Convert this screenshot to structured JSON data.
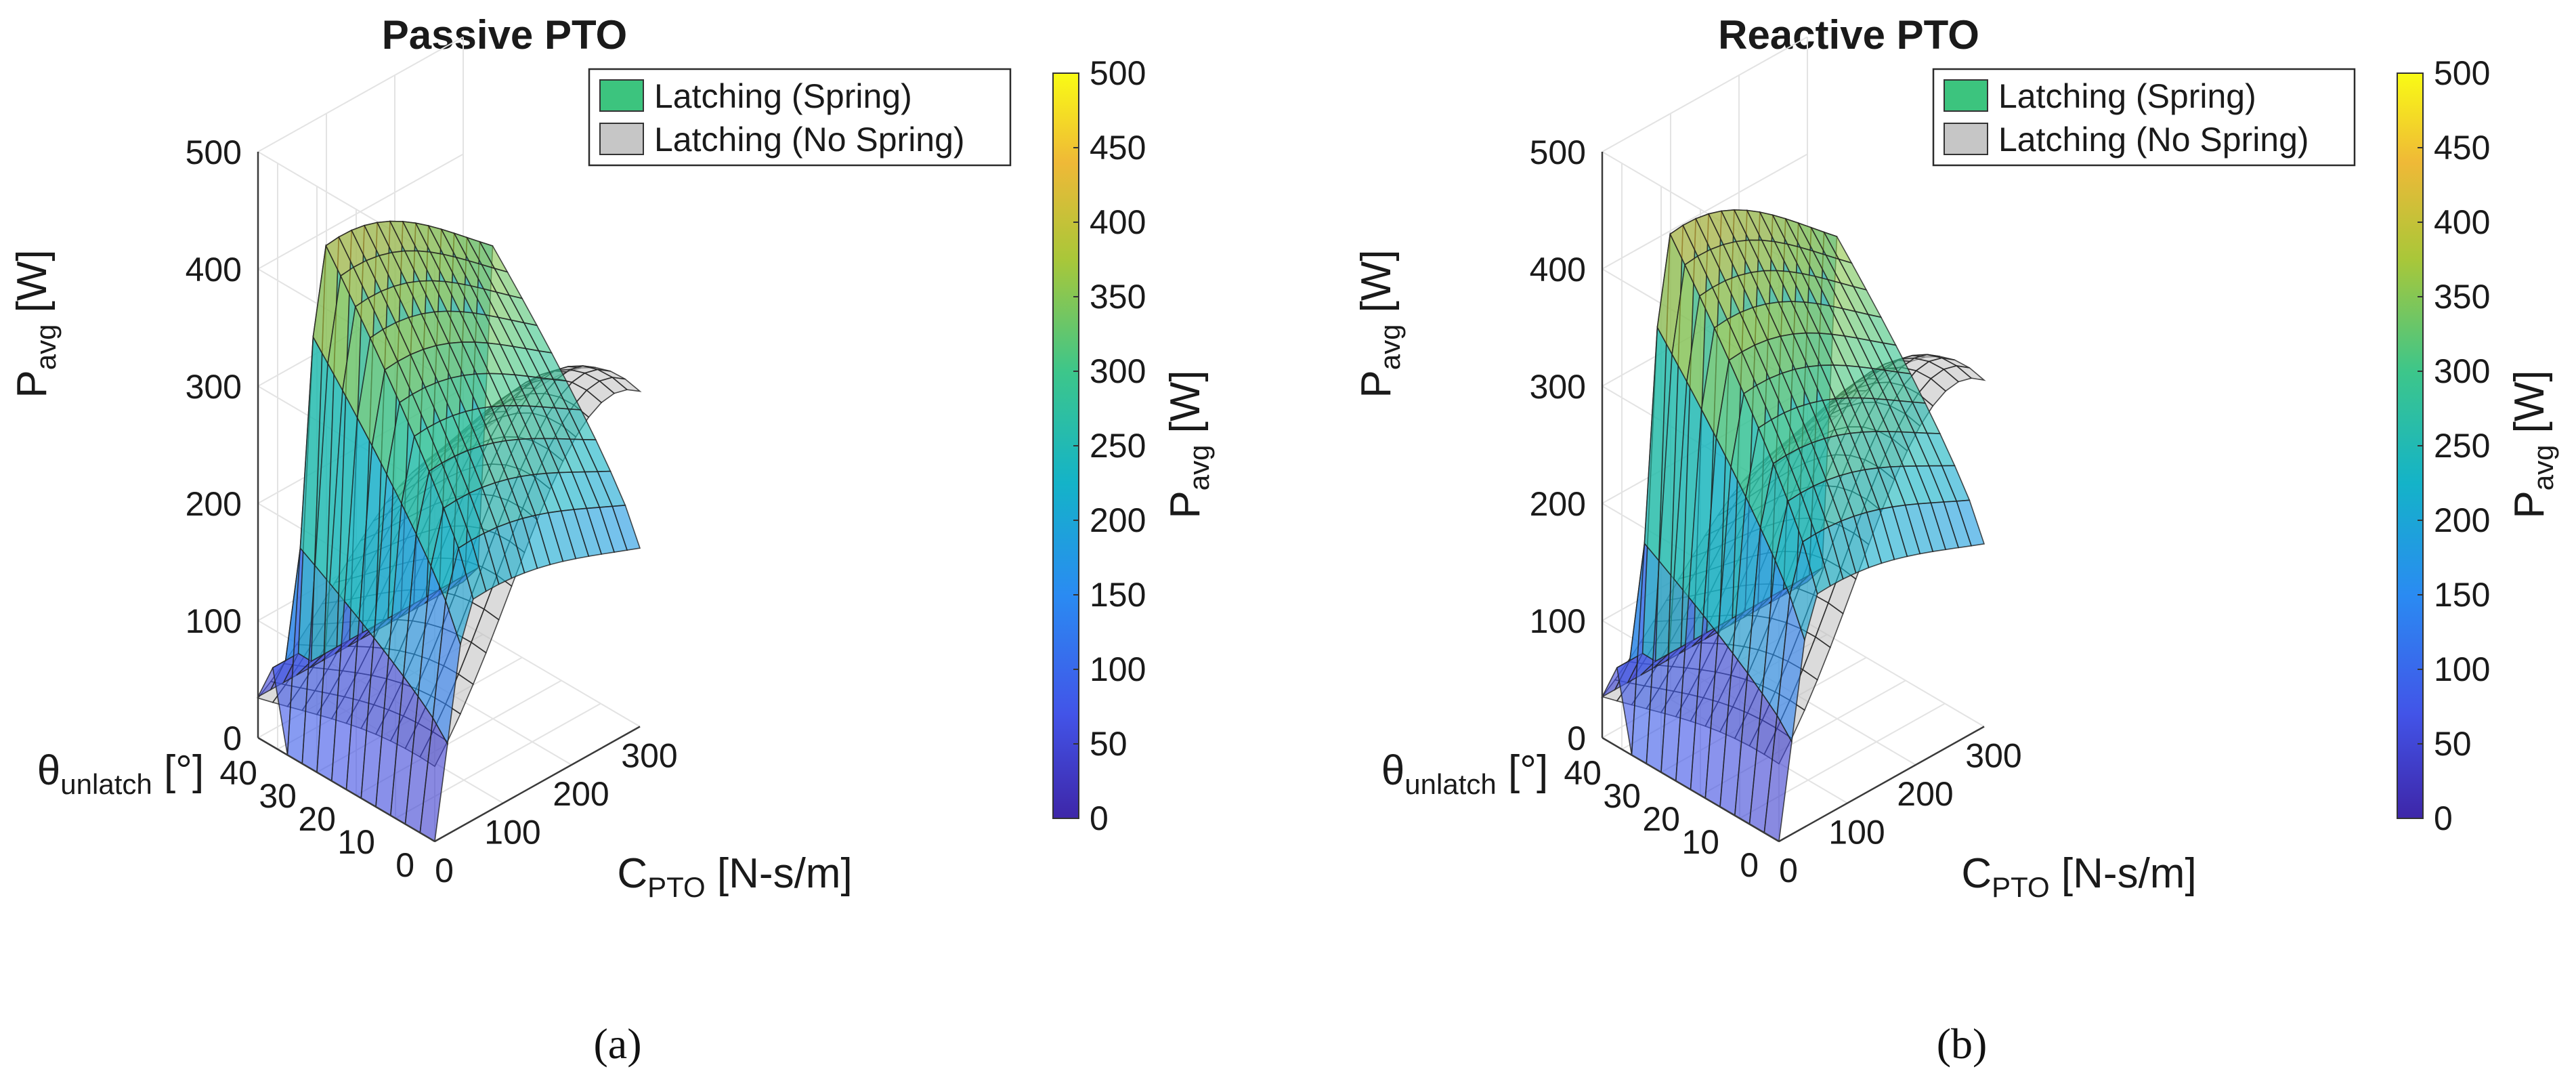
{
  "chart_data": [
    {
      "type": "surface3d",
      "panel": "a",
      "title": "Passive PTO",
      "caption": "(a)",
      "xlabel": {
        "main": "C",
        "sub": "PTO",
        "unit": " [N-s/m]"
      },
      "ylabel": {
        "main": "θ",
        "sub": "unlatch",
        "unit": " [°]"
      },
      "zlabel": {
        "main": "P",
        "sub": "avg",
        "unit": " [W]"
      },
      "xlim": [
        0,
        300
      ],
      "ylim": [
        0,
        45
      ],
      "zlim": [
        0,
        500
      ],
      "x_ticks": [
        "0",
        "100",
        "200",
        "300"
      ],
      "y_ticks": [
        "0",
        "10",
        "20",
        "30",
        "40"
      ],
      "z_ticks": [
        "0",
        "100",
        "200",
        "300",
        "400",
        "500"
      ],
      "legend": [
        "Latching (Spring)",
        "Latching (No Spring)"
      ],
      "legend_placement": "top-right",
      "colorbar": {
        "label": {
          "main": "P",
          "sub": "avg",
          "unit": " [W]"
        },
        "ticks": [
          "0",
          "50",
          "100",
          "150",
          "200",
          "250",
          "300",
          "350",
          "400",
          "450",
          "500"
        ],
        "range": [
          0,
          500
        ]
      },
      "series": [
        {
          "name": "Latching (Spring)",
          "peak_power_W": 420,
          "peak_C_PTO": 80,
          "peak_theta_deg": 32,
          "power_at_C300_W": 320,
          "power_at_theta0_W": 130
        },
        {
          "name": "Latching (No Spring)",
          "peak_power_W": 300,
          "peak_C_PTO": 140,
          "peak_theta_deg": 10,
          "power_at_C300_W": 290,
          "power_at_theta0_W": 60
        }
      ]
    },
    {
      "type": "surface3d",
      "panel": "b",
      "title": "Reactive PTO",
      "caption": "(b)",
      "xlabel": {
        "main": "C",
        "sub": "PTO",
        "unit": " [N-s/m]"
      },
      "ylabel": {
        "main": "θ",
        "sub": "unlatch",
        "unit": " [°]"
      },
      "zlabel": {
        "main": "P",
        "sub": "avg",
        "unit": " [W]"
      },
      "xlim": [
        0,
        300
      ],
      "ylim": [
        0,
        45
      ],
      "zlim": [
        0,
        500
      ],
      "x_ticks": [
        "0",
        "100",
        "200",
        "300"
      ],
      "y_ticks": [
        "0",
        "10",
        "20",
        "30",
        "40"
      ],
      "z_ticks": [
        "0",
        "100",
        "200",
        "300",
        "400",
        "500"
      ],
      "legend": [
        "Latching (Spring)",
        "Latching (No Spring)"
      ],
      "legend_placement": "top-right",
      "colorbar": {
        "label": {
          "main": "P",
          "sub": "avg",
          "unit": " [W]"
        },
        "ticks": [
          "0",
          "50",
          "100",
          "150",
          "200",
          "250",
          "300",
          "350",
          "400",
          "450",
          "500"
        ],
        "range": [
          0,
          500
        ]
      },
      "series": [
        {
          "name": "Latching (Spring)",
          "peak_power_W": 430,
          "peak_C_PTO": 80,
          "peak_theta_deg": 32,
          "power_at_C300_W": 320,
          "power_at_theta0_W": 140
        },
        {
          "name": "Latching (No Spring)",
          "peak_power_W": 310,
          "peak_C_PTO": 150,
          "peak_theta_deg": 10,
          "power_at_C300_W": 300,
          "power_at_theta0_W": 70
        }
      ]
    }
  ],
  "colors": {
    "spring_legend": "#3cc47e",
    "nospring_legend": "#c6c6c6",
    "viridis": [
      "#3e26a8",
      "#4254e8",
      "#2a8bf2",
      "#14b3c8",
      "#3dc68a",
      "#a9c739",
      "#efb937",
      "#f9fb15"
    ]
  }
}
